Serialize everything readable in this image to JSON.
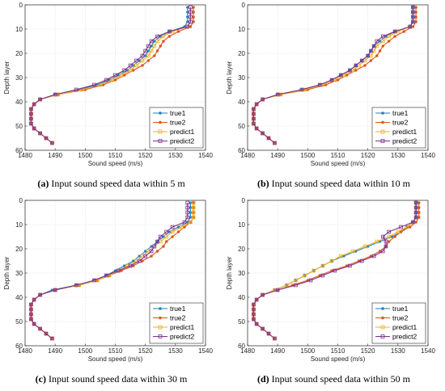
{
  "colors": {
    "true1": "#1f7fc4",
    "true2": "#d95319",
    "predict1": "#edb120",
    "predict2": "#7e2f8e"
  },
  "chart_data": [
    {
      "type": "line",
      "caption_label": "(a)",
      "caption_text": " Input sound speed data within 5 m",
      "xlabel": "Sound speed (m/s)",
      "ylabel": "Depth layer",
      "xlim": [
        1480,
        1540
      ],
      "ylim": [
        0,
        60
      ],
      "y_reversed": true,
      "x_ticks": [
        "1480",
        "1490",
        "1500",
        "1510",
        "1520",
        "1530",
        "1540"
      ],
      "y_ticks": [
        "0",
        "10",
        "20",
        "30",
        "40",
        "50",
        "60"
      ],
      "grid": true,
      "legend_position": "bottom-right",
      "y": [
        1,
        3,
        5,
        7,
        9,
        11,
        13,
        15,
        17,
        19,
        21,
        23,
        25,
        27,
        29,
        31,
        33,
        35,
        37,
        39,
        41,
        43,
        45,
        47,
        49,
        51,
        53,
        55,
        57
      ],
      "series": [
        {
          "name": "true1",
          "values": [
            1534,
            1534,
            1534,
            1534,
            1533,
            1528,
            1525,
            1523,
            1522,
            1521,
            1520,
            1518,
            1516,
            1514,
            1511,
            1508,
            1504,
            1498,
            1490,
            1485,
            1483,
            1482,
            1482,
            1482,
            1482,
            1483,
            1485,
            1487,
            1489
          ]
        },
        {
          "name": "true2",
          "values": [
            1536,
            1536,
            1536,
            1536,
            1535,
            1531,
            1528,
            1526,
            1525,
            1524,
            1523,
            1521,
            1519,
            1516,
            1513,
            1510,
            1506,
            1500,
            1491,
            1485,
            1483,
            1482,
            1482,
            1482,
            1482,
            1483,
            1485,
            1487,
            1489
          ]
        },
        {
          "name": "predict1",
          "values": [
            1535,
            1535,
            1535,
            1535,
            1534,
            1529,
            1526,
            1524,
            1523,
            1522,
            1521,
            1519,
            1517,
            1515,
            1512,
            1509,
            1505,
            1499,
            1491,
            1485,
            1483,
            1482,
            1482,
            1482,
            1482,
            1483,
            1485,
            1487,
            1489
          ]
        },
        {
          "name": "predict2",
          "values": [
            1535,
            1535,
            1535,
            1535,
            1534,
            1528,
            1524,
            1522,
            1521,
            1520,
            1519,
            1517,
            1515,
            1513,
            1510,
            1507,
            1503,
            1497,
            1490,
            1485,
            1483,
            1482,
            1482,
            1482,
            1482,
            1483,
            1485,
            1487,
            1489
          ]
        }
      ]
    },
    {
      "type": "line",
      "caption_label": "(b)",
      "caption_text": " Input sound speed data within 10 m",
      "xlabel": "Sound speed (m/s)",
      "ylabel": "Depth layer",
      "xlim": [
        1480,
        1540
      ],
      "ylim": [
        0,
        60
      ],
      "y_reversed": true,
      "x_ticks": [
        "1480",
        "1490",
        "1500",
        "1510",
        "1520",
        "1530",
        "1540"
      ],
      "y_ticks": [
        "0",
        "10",
        "20",
        "30",
        "40",
        "50",
        "60"
      ],
      "grid": true,
      "legend_position": "bottom-right",
      "y": [
        1,
        3,
        5,
        7,
        9,
        11,
        13,
        15,
        17,
        19,
        21,
        23,
        25,
        27,
        29,
        31,
        33,
        35,
        37,
        39,
        41,
        43,
        45,
        47,
        49,
        51,
        53,
        55,
        57
      ],
      "series": [
        {
          "name": "true1",
          "values": [
            1535,
            1535,
            1535,
            1535,
            1534,
            1529,
            1526,
            1524,
            1522,
            1521,
            1520,
            1518,
            1516,
            1514,
            1511,
            1508,
            1504,
            1498,
            1490,
            1485,
            1483,
            1482,
            1482,
            1482,
            1482,
            1483,
            1485,
            1487,
            1489
          ]
        },
        {
          "name": "true2",
          "values": [
            1536,
            1536,
            1536,
            1536,
            1535,
            1532,
            1529,
            1527,
            1525,
            1524,
            1523,
            1521,
            1519,
            1516,
            1513,
            1510,
            1506,
            1500,
            1491,
            1485,
            1483,
            1482,
            1482,
            1482,
            1482,
            1483,
            1485,
            1487,
            1489
          ]
        },
        {
          "name": "predict1",
          "values": [
            1535,
            1535,
            1535,
            1535,
            1534,
            1530,
            1527,
            1525,
            1523,
            1522,
            1521,
            1519,
            1517,
            1515,
            1512,
            1509,
            1505,
            1499,
            1491,
            1485,
            1483,
            1482,
            1482,
            1482,
            1482,
            1483,
            1485,
            1487,
            1489
          ]
        },
        {
          "name": "predict2",
          "values": [
            1535,
            1535,
            1535,
            1535,
            1534,
            1529,
            1525,
            1523,
            1522,
            1521,
            1520,
            1518,
            1516,
            1514,
            1511,
            1508,
            1504,
            1498,
            1490,
            1485,
            1483,
            1482,
            1482,
            1482,
            1482,
            1483,
            1485,
            1487,
            1489
          ]
        }
      ]
    },
    {
      "type": "line",
      "caption_label": "(c)",
      "caption_text": " Input sound speed data within 30 m",
      "xlabel": "Sound speed (m/s)",
      "ylabel": "Depth layer",
      "xlim": [
        1480,
        1540
      ],
      "ylim": [
        0,
        60
      ],
      "y_reversed": true,
      "x_ticks": [
        "1480",
        "1490",
        "1500",
        "1510",
        "1520",
        "1530",
        "1540"
      ],
      "y_ticks": [
        "0",
        "10",
        "20",
        "30",
        "40",
        "50",
        "60"
      ],
      "grid": true,
      "legend_position": "bottom-right",
      "y": [
        1,
        3,
        5,
        7,
        9,
        11,
        13,
        15,
        17,
        19,
        21,
        23,
        25,
        27,
        29,
        31,
        33,
        35,
        37,
        39,
        41,
        43,
        45,
        47,
        49,
        51,
        53,
        55,
        57
      ],
      "series": [
        {
          "name": "true1",
          "values": [
            1535,
            1535,
            1535,
            1535,
            1534,
            1531,
            1528,
            1526,
            1524,
            1522,
            1520,
            1518,
            1516,
            1513,
            1510,
            1507,
            1503,
            1497,
            1489,
            1485,
            1483,
            1482,
            1482,
            1482,
            1482,
            1483,
            1485,
            1487,
            1489
          ]
        },
        {
          "name": "true2",
          "values": [
            1536,
            1536,
            1536,
            1536,
            1535,
            1533,
            1531,
            1529,
            1527,
            1526,
            1524,
            1522,
            1519,
            1516,
            1512,
            1508,
            1504,
            1498,
            1490,
            1485,
            1483,
            1482,
            1482,
            1482,
            1482,
            1483,
            1485,
            1487,
            1489
          ]
        },
        {
          "name": "predict1",
          "values": [
            1536,
            1536,
            1536,
            1536,
            1535,
            1532,
            1529,
            1527,
            1525,
            1523,
            1521,
            1519,
            1517,
            1514,
            1511,
            1508,
            1504,
            1498,
            1490,
            1485,
            1483,
            1482,
            1482,
            1482,
            1482,
            1483,
            1485,
            1487,
            1489
          ]
        },
        {
          "name": "predict2",
          "values": [
            1534,
            1534,
            1534,
            1534,
            1533,
            1529,
            1527,
            1525,
            1524,
            1523,
            1522,
            1520,
            1518,
            1515,
            1511,
            1507,
            1503,
            1497,
            1490,
            1485,
            1483,
            1482,
            1482,
            1482,
            1482,
            1483,
            1485,
            1487,
            1489
          ]
        }
      ]
    },
    {
      "type": "line",
      "caption_label": "(d)",
      "caption_text": " Input sound speed data within 50 m",
      "xlabel": "Sound speed (m/s)",
      "ylabel": "Depth layer",
      "xlim": [
        1480,
        1540
      ],
      "ylim": [
        0,
        60
      ],
      "y_reversed": true,
      "x_ticks": [
        "1480",
        "1490",
        "1500",
        "1510",
        "1520",
        "1530",
        "1540"
      ],
      "y_ticks": [
        "0",
        "10",
        "20",
        "30",
        "40",
        "50",
        "60"
      ],
      "grid": true,
      "legend_position": "bottom-right",
      "y": [
        1,
        3,
        5,
        7,
        9,
        11,
        13,
        15,
        17,
        19,
        21,
        23,
        25,
        27,
        29,
        31,
        33,
        35,
        37,
        39,
        41,
        43,
        45,
        47,
        49,
        51,
        53,
        55,
        57
      ],
      "series": [
        {
          "name": "true1",
          "values": [
            1536,
            1536,
            1536,
            1536,
            1535,
            1533,
            1531,
            1528,
            1524,
            1520,
            1516,
            1512,
            1508,
            1505,
            1502,
            1499,
            1496,
            1493,
            1489,
            1485,
            1483,
            1482,
            1482,
            1482,
            1482,
            1483,
            1485,
            1487,
            1489
          ]
        },
        {
          "name": "true2",
          "values": [
            1537,
            1537,
            1537,
            1537,
            1536,
            1534,
            1531,
            1529,
            1527,
            1526,
            1524,
            1521,
            1517,
            1513,
            1508,
            1504,
            1500,
            1495,
            1490,
            1485,
            1483,
            1482,
            1482,
            1482,
            1482,
            1483,
            1485,
            1487,
            1489
          ]
        },
        {
          "name": "predict1",
          "values": [
            1536,
            1536,
            1536,
            1536,
            1535,
            1533,
            1530,
            1527,
            1523,
            1519,
            1515,
            1511,
            1508,
            1505,
            1502,
            1499,
            1496,
            1493,
            1489,
            1485,
            1483,
            1482,
            1482,
            1482,
            1482,
            1483,
            1485,
            1487,
            1489
          ]
        },
        {
          "name": "predict2",
          "values": [
            1536,
            1536,
            1536,
            1536,
            1535,
            1531,
            1527,
            1525,
            1526,
            1526,
            1525,
            1522,
            1518,
            1514,
            1509,
            1505,
            1501,
            1496,
            1490,
            1485,
            1483,
            1482,
            1482,
            1482,
            1482,
            1483,
            1485,
            1487,
            1489
          ]
        }
      ]
    }
  ]
}
